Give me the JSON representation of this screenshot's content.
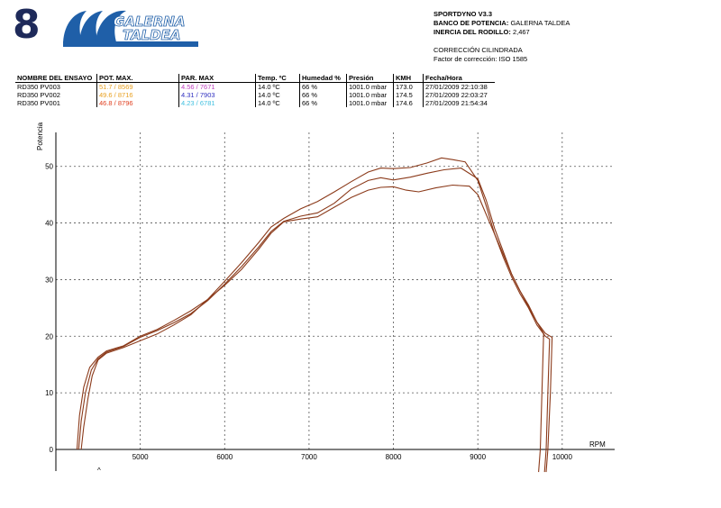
{
  "page_number": "8",
  "logo": {
    "line1": "GALERNA",
    "line2": "TALDEA",
    "color": "#1f5fa8"
  },
  "info": {
    "software": "SPORTDYNO V3.3",
    "bench_label": "BANCO DE POTENCIA:",
    "bench_value": "GALERNA TALDEA",
    "inertia_label": "INERCIA DEL RODILLO:",
    "inertia_value": "2,467",
    "correction_title": "CORRECCIÓN CILINDRADA",
    "correction_factor": "Factor de corrección: ISO 1585"
  },
  "table": {
    "headers": [
      "NOMBRE DEL ENSAYO",
      "POT. MAX.",
      "PAR. MAX",
      "Temp. ºC",
      "Humedad %",
      "Presión",
      "KMH",
      "Fecha/Hora"
    ],
    "rows": [
      {
        "name": "RD350 PV003",
        "pot": "51.7 / 8569",
        "par": "4.56 / 7671",
        "temp": "14.0 ºC",
        "hum": " 66 %",
        "pres": "1001.0 mbar",
        "kmh": "173.0",
        "fecha": "27/01/2009 22:10:38",
        "pot_color": "#e8a020",
        "par_color": "#c040c0"
      },
      {
        "name": "RD350 PV002",
        "pot": "49.6 / 8716",
        "par": "4.31 / 7903",
        "temp": "14.0 ºC",
        "hum": "66 %",
        "pres": "1001.0 mbar",
        "kmh": "174.5",
        "fecha": "27/01/2009 22:03:27",
        "pot_color": "#e8a020",
        "par_color": "#3030c0"
      },
      {
        "name": "RD350 PV001",
        "pot": "46.8 / 8796",
        "par": "4.23 / 6781",
        "temp": "14.0 ºC",
        "hum": "66 %",
        "pres": "1001.0 mbar",
        "kmh": "174.6",
        "fecha": "27/01/2009 21:54:34",
        "pot_color": "#e04020",
        "par_color": "#40c0e0"
      }
    ]
  },
  "chart_data": {
    "type": "line",
    "ylabel": "Potencia",
    "xlabel": "RPM",
    "xlim": [
      4000,
      10600
    ],
    "ylim": [
      0,
      56
    ],
    "xticks": [
      5000,
      6000,
      7000,
      8000,
      9000,
      10000
    ],
    "yticks": [
      0,
      10,
      20,
      30,
      40,
      50
    ],
    "grid": true,
    "line_color": "#8b3a1a",
    "series": [
      {
        "name": "RD350 PV003",
        "points": [
          [
            4300,
            0
          ],
          [
            4330,
            4
          ],
          [
            4380,
            9
          ],
          [
            4430,
            13
          ],
          [
            4500,
            15.8
          ],
          [
            4600,
            17
          ],
          [
            4800,
            18
          ],
          [
            5000,
            19.2
          ],
          [
            5200,
            20.4
          ],
          [
            5400,
            22
          ],
          [
            5600,
            23.8
          ],
          [
            5800,
            26.5
          ],
          [
            6000,
            29.7
          ],
          [
            6200,
            33
          ],
          [
            6400,
            36.5
          ],
          [
            6550,
            39.3
          ],
          [
            6700,
            40.8
          ],
          [
            6900,
            42.5
          ],
          [
            7100,
            43.8
          ],
          [
            7300,
            45.5
          ],
          [
            7500,
            47.3
          ],
          [
            7700,
            49
          ],
          [
            7850,
            49.7
          ],
          [
            8000,
            49.6
          ],
          [
            8200,
            49.8
          ],
          [
            8400,
            50.6
          ],
          [
            8570,
            51.5
          ],
          [
            8700,
            51.2
          ],
          [
            8850,
            50.8
          ],
          [
            9000,
            47.5
          ],
          [
            9100,
            43
          ],
          [
            9200,
            38
          ],
          [
            9300,
            34
          ],
          [
            9400,
            30.5
          ],
          [
            9500,
            27.5
          ],
          [
            9600,
            25
          ],
          [
            9700,
            22
          ],
          [
            9800,
            20
          ],
          [
            9850,
            19.5
          ],
          [
            9830,
            10
          ],
          [
            9810,
            0
          ],
          [
            9790,
            -4
          ]
        ]
      },
      {
        "name": "RD350 PV002",
        "points": [
          [
            4270,
            0
          ],
          [
            4300,
            5
          ],
          [
            4350,
            10
          ],
          [
            4420,
            14
          ],
          [
            4500,
            16
          ],
          [
            4600,
            17.2
          ],
          [
            4800,
            18.2
          ],
          [
            5000,
            19.8
          ],
          [
            5200,
            21
          ],
          [
            5400,
            22.4
          ],
          [
            5600,
            24
          ],
          [
            5800,
            26.3
          ],
          [
            6000,
            29.2
          ],
          [
            6200,
            32.3
          ],
          [
            6400,
            35.7
          ],
          [
            6550,
            38.5
          ],
          [
            6700,
            40.3
          ],
          [
            6900,
            41.2
          ],
          [
            7100,
            41.8
          ],
          [
            7300,
            43.5
          ],
          [
            7500,
            46
          ],
          [
            7700,
            47.5
          ],
          [
            7850,
            48
          ],
          [
            8000,
            47.6
          ],
          [
            8200,
            48.1
          ],
          [
            8400,
            48.8
          ],
          [
            8600,
            49.4
          ],
          [
            8800,
            49.7
          ],
          [
            9000,
            47.8
          ],
          [
            9100,
            44
          ],
          [
            9200,
            39
          ],
          [
            9300,
            35
          ],
          [
            9400,
            31
          ],
          [
            9500,
            28
          ],
          [
            9600,
            25.2
          ],
          [
            9700,
            22.5
          ],
          [
            9800,
            20.5
          ],
          [
            9880,
            19.8
          ],
          [
            9860,
            10
          ],
          [
            9830,
            0
          ],
          [
            9810,
            -4
          ]
        ]
      },
      {
        "name": "RD350 PV001",
        "points": [
          [
            4250,
            0
          ],
          [
            4280,
            6
          ],
          [
            4330,
            11
          ],
          [
            4400,
            14.5
          ],
          [
            4500,
            16.3
          ],
          [
            4600,
            17.4
          ],
          [
            4800,
            18.3
          ],
          [
            5000,
            20
          ],
          [
            5200,
            21.2
          ],
          [
            5400,
            22.8
          ],
          [
            5600,
            24.5
          ],
          [
            5800,
            26.5
          ],
          [
            6000,
            29
          ],
          [
            6200,
            31.8
          ],
          [
            6400,
            35.3
          ],
          [
            6550,
            38.2
          ],
          [
            6700,
            40.2
          ],
          [
            6900,
            40.7
          ],
          [
            7100,
            41.1
          ],
          [
            7300,
            42.8
          ],
          [
            7500,
            44.5
          ],
          [
            7700,
            45.8
          ],
          [
            7850,
            46.3
          ],
          [
            8000,
            46.4
          ],
          [
            8150,
            45.8
          ],
          [
            8300,
            45.5
          ],
          [
            8500,
            46.2
          ],
          [
            8700,
            46.7
          ],
          [
            8900,
            46.5
          ],
          [
            9000,
            45
          ],
          [
            9100,
            41.5
          ],
          [
            9200,
            38
          ],
          [
            9300,
            34.5
          ],
          [
            9400,
            31
          ],
          [
            9500,
            28
          ],
          [
            9600,
            25.5
          ],
          [
            9700,
            22.5
          ],
          [
            9780,
            20.5
          ],
          [
            9760,
            10
          ],
          [
            9740,
            0
          ],
          [
            9720,
            -4
          ]
        ]
      }
    ]
  }
}
